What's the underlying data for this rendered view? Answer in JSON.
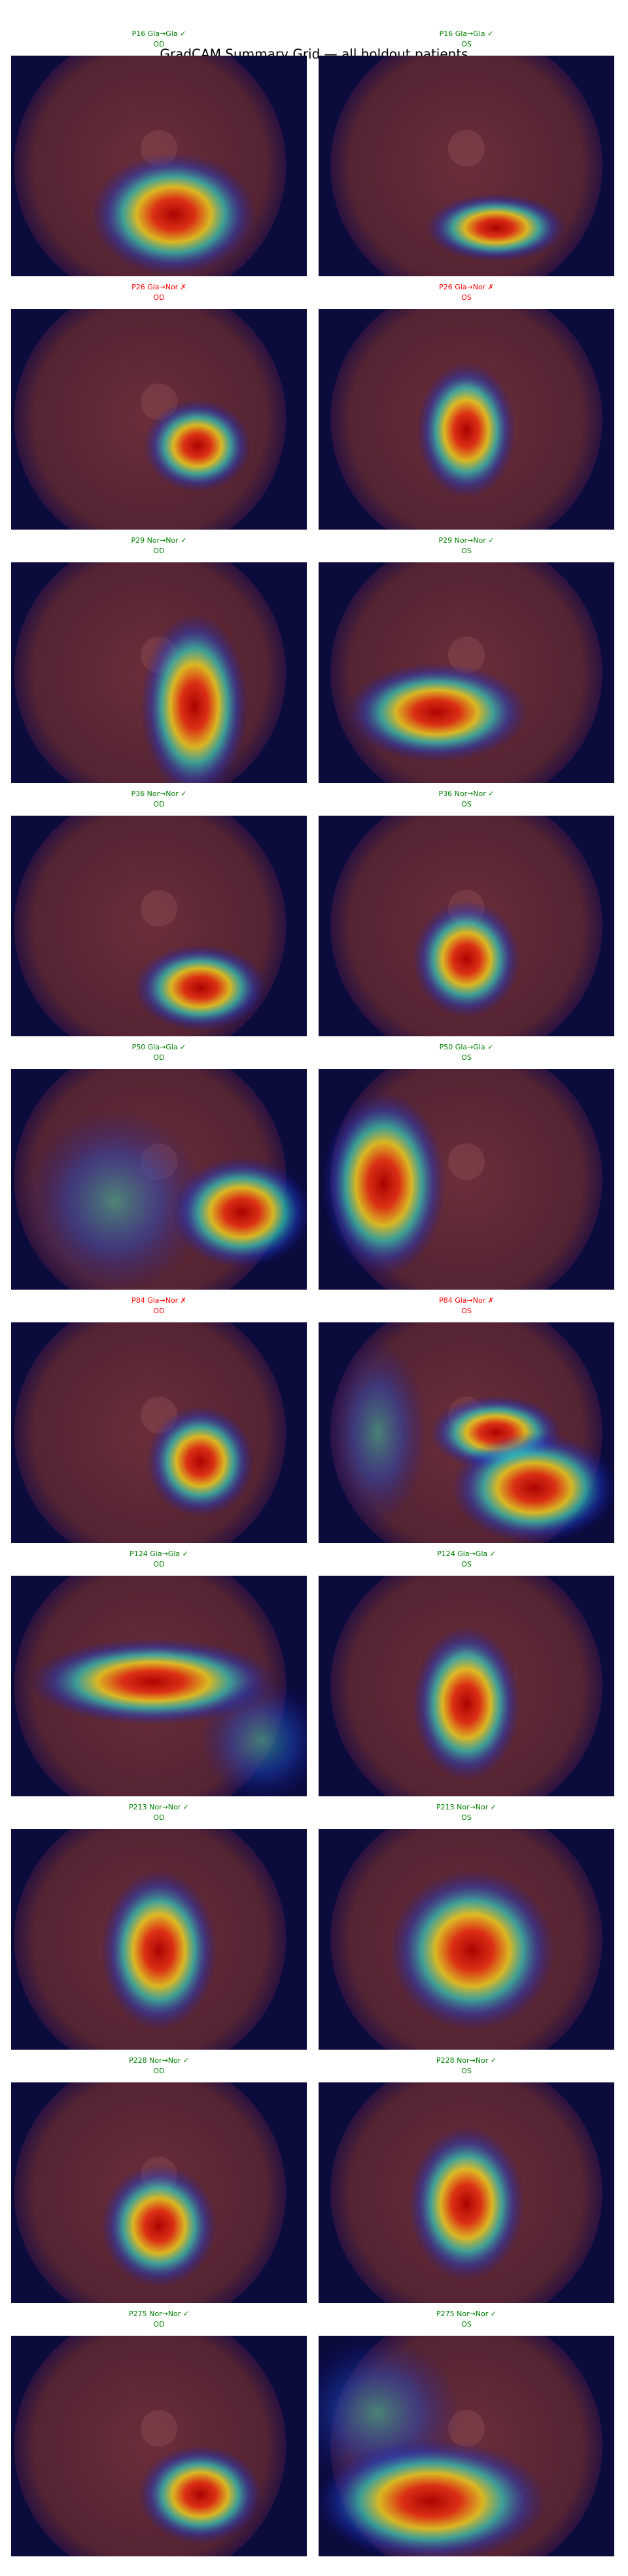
{
  "title": "GradCAM Summary Grid — all holdout patients",
  "panels": [
    {
      "label": "P16  Gla→Gla ✓",
      "eye": "OD",
      "color": "green"
    },
    {
      "label": "P16  Gla→Gla ✓",
      "eye": "OS",
      "color": "green"
    },
    {
      "label": "P26  Gla→Nor ✗",
      "eye": "OD",
      "color": "red"
    },
    {
      "label": "P26  Gla→Nor ✗",
      "eye": "OS",
      "color": "red"
    },
    {
      "label": "P29  Nor→Nor ✓",
      "eye": "OD",
      "color": "green"
    },
    {
      "label": "P29  Nor→Nor ✓",
      "eye": "OS",
      "color": "green"
    },
    {
      "label": "P36  Nor→Nor ✓",
      "eye": "OD",
      "color": "green"
    },
    {
      "label": "P36  Nor→Nor ✓",
      "eye": "OS",
      "color": "green"
    },
    {
      "label": "P50  Gla→Gla ✓",
      "eye": "OD",
      "color": "green"
    },
    {
      "label": "P50  Gla→Gla ✓",
      "eye": "OS",
      "color": "green"
    },
    {
      "label": "P84  Gla→Nor ✗",
      "eye": "OD",
      "color": "red"
    },
    {
      "label": "P84  Gla→Nor ✗",
      "eye": "OS",
      "color": "red"
    },
    {
      "label": "P124  Gla→Gla ✓",
      "eye": "OD",
      "color": "green"
    },
    {
      "label": "P124  Gla→Gla ✓",
      "eye": "OS",
      "color": "green"
    },
    {
      "label": "P213  Nor→Nor ✓",
      "eye": "OD",
      "color": "green"
    },
    {
      "label": "P213  Nor→Nor ✓",
      "eye": "OS",
      "color": "green"
    },
    {
      "label": "P228  Nor→Nor ✓",
      "eye": "OD",
      "color": "green"
    },
    {
      "label": "P228  Nor→Nor ✓",
      "eye": "OS",
      "color": "green"
    },
    {
      "label": "P275  Nor→Nor ✓",
      "eye": "OD",
      "color": "green"
    },
    {
      "label": "P275  Nor→Nor ✓",
      "eye": "OS",
      "color": "green"
    }
  ]
}
